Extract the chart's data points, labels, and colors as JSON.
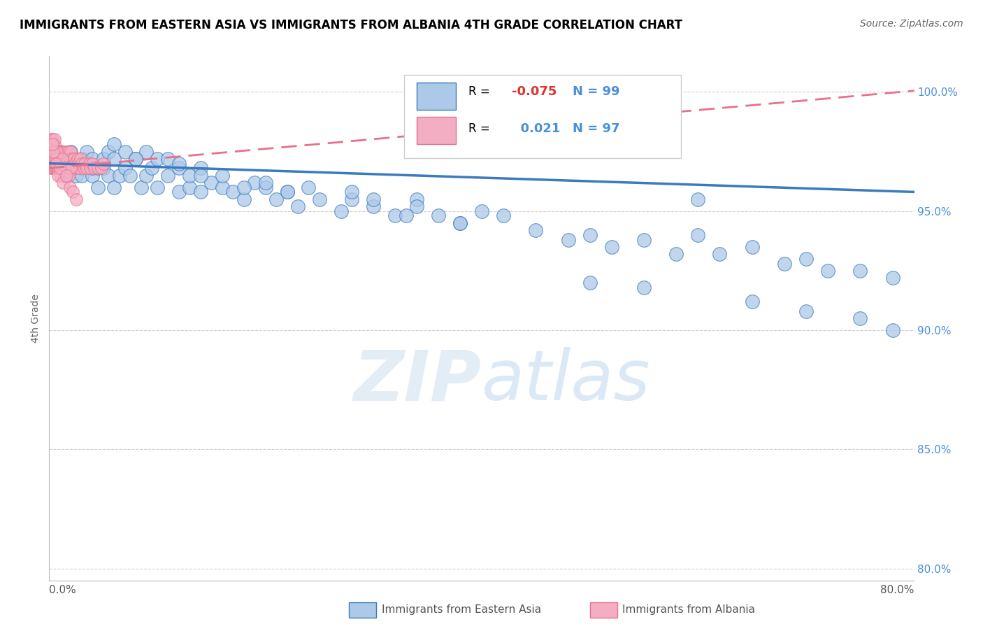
{
  "title": "IMMIGRANTS FROM EASTERN ASIA VS IMMIGRANTS FROM ALBANIA 4TH GRADE CORRELATION CHART",
  "source": "Source: ZipAtlas.com",
  "ylabel": "4th Grade",
  "legend_blue_r": "-0.075",
  "legend_blue_n": "99",
  "legend_pink_r": "0.021",
  "legend_pink_n": "97",
  "blue_color": "#adc9e8",
  "pink_color": "#f4aec4",
  "trend_blue_color": "#3a7bbf",
  "trend_pink_color": "#e8708a",
  "watermark": "ZIPatlas",
  "xmin": 0.0,
  "xmax": 0.8,
  "ymin": 0.795,
  "ymax": 1.015,
  "yticks": [
    0.8,
    0.85,
    0.9,
    0.95,
    1.0
  ],
  "ytick_labels": [
    "80.0%",
    "85.0%",
    "90.0%",
    "95.0%",
    "100.0%"
  ],
  "blue_trend_x0": 0.0,
  "blue_trend_x1": 0.8,
  "blue_trend_y0": 0.97,
  "blue_trend_y1": 0.958,
  "pink_trend_x0": 0.0,
  "pink_trend_x1": 0.8,
  "pink_trend_y0": 0.968,
  "pink_trend_y1": 1.0005,
  "blue_x": [
    0.005,
    0.01,
    0.01,
    0.015,
    0.015,
    0.02,
    0.02,
    0.02,
    0.025,
    0.025,
    0.03,
    0.03,
    0.03,
    0.035,
    0.035,
    0.04,
    0.04,
    0.04,
    0.045,
    0.045,
    0.05,
    0.05,
    0.055,
    0.055,
    0.06,
    0.06,
    0.065,
    0.07,
    0.07,
    0.075,
    0.08,
    0.085,
    0.09,
    0.09,
    0.095,
    0.1,
    0.1,
    0.11,
    0.11,
    0.12,
    0.12,
    0.13,
    0.13,
    0.14,
    0.14,
    0.15,
    0.16,
    0.17,
    0.18,
    0.19,
    0.2,
    0.21,
    0.22,
    0.23,
    0.24,
    0.25,
    0.27,
    0.28,
    0.3,
    0.32,
    0.34,
    0.36,
    0.38,
    0.4,
    0.42,
    0.45,
    0.48,
    0.5,
    0.52,
    0.55,
    0.58,
    0.6,
    0.62,
    0.65,
    0.68,
    0.7,
    0.72,
    0.75,
    0.78,
    0.34,
    0.38,
    0.28,
    0.3,
    0.33,
    0.2,
    0.22,
    0.16,
    0.18,
    0.12,
    0.14,
    0.08,
    0.06,
    0.5,
    0.55,
    0.65,
    0.7,
    0.75,
    0.78,
    0.6
  ],
  "blue_y": [
    0.972,
    0.968,
    0.975,
    0.965,
    0.97,
    0.975,
    0.968,
    0.972,
    0.965,
    0.97,
    0.968,
    0.972,
    0.965,
    0.97,
    0.975,
    0.965,
    0.968,
    0.972,
    0.96,
    0.968,
    0.968,
    0.972,
    0.965,
    0.975,
    0.96,
    0.972,
    0.965,
    0.968,
    0.975,
    0.965,
    0.972,
    0.96,
    0.965,
    0.975,
    0.968,
    0.96,
    0.972,
    0.965,
    0.972,
    0.958,
    0.968,
    0.96,
    0.965,
    0.958,
    0.968,
    0.962,
    0.96,
    0.958,
    0.955,
    0.962,
    0.96,
    0.955,
    0.958,
    0.952,
    0.96,
    0.955,
    0.95,
    0.955,
    0.952,
    0.948,
    0.955,
    0.948,
    0.945,
    0.95,
    0.948,
    0.942,
    0.938,
    0.94,
    0.935,
    0.938,
    0.932,
    0.94,
    0.932,
    0.935,
    0.928,
    0.93,
    0.925,
    0.925,
    0.922,
    0.952,
    0.945,
    0.958,
    0.955,
    0.948,
    0.962,
    0.958,
    0.965,
    0.96,
    0.97,
    0.965,
    0.972,
    0.978,
    0.92,
    0.918,
    0.912,
    0.908,
    0.905,
    0.9,
    0.955
  ],
  "pink_x": [
    0.001,
    0.001,
    0.001,
    0.002,
    0.002,
    0.002,
    0.002,
    0.003,
    0.003,
    0.003,
    0.003,
    0.004,
    0.004,
    0.004,
    0.004,
    0.005,
    0.005,
    0.005,
    0.005,
    0.006,
    0.006,
    0.006,
    0.007,
    0.007,
    0.007,
    0.008,
    0.008,
    0.008,
    0.009,
    0.009,
    0.009,
    0.01,
    0.01,
    0.01,
    0.011,
    0.011,
    0.012,
    0.012,
    0.013,
    0.013,
    0.014,
    0.014,
    0.015,
    0.015,
    0.016,
    0.016,
    0.017,
    0.017,
    0.018,
    0.018,
    0.019,
    0.019,
    0.02,
    0.02,
    0.021,
    0.021,
    0.022,
    0.022,
    0.023,
    0.023,
    0.024,
    0.025,
    0.026,
    0.027,
    0.028,
    0.029,
    0.03,
    0.032,
    0.033,
    0.035,
    0.037,
    0.038,
    0.04,
    0.042,
    0.045,
    0.048,
    0.05,
    0.007,
    0.006,
    0.008,
    0.009,
    0.01,
    0.012,
    0.015,
    0.018,
    0.02,
    0.005,
    0.004,
    0.003,
    0.006,
    0.008,
    0.01,
    0.013,
    0.016,
    0.019,
    0.022,
    0.025
  ],
  "pink_y": [
    0.98,
    0.975,
    0.97,
    0.978,
    0.972,
    0.968,
    0.975,
    0.972,
    0.968,
    0.975,
    0.98,
    0.968,
    0.975,
    0.972,
    0.978,
    0.975,
    0.968,
    0.972,
    0.978,
    0.97,
    0.975,
    0.968,
    0.972,
    0.968,
    0.975,
    0.97,
    0.975,
    0.968,
    0.972,
    0.968,
    0.975,
    0.97,
    0.975,
    0.968,
    0.972,
    0.968,
    0.975,
    0.97,
    0.972,
    0.968,
    0.97,
    0.975,
    0.968,
    0.972,
    0.97,
    0.975,
    0.968,
    0.972,
    0.97,
    0.975,
    0.968,
    0.972,
    0.97,
    0.975,
    0.968,
    0.972,
    0.97,
    0.968,
    0.972,
    0.968,
    0.97,
    0.968,
    0.972,
    0.97,
    0.968,
    0.972,
    0.97,
    0.968,
    0.97,
    0.968,
    0.97,
    0.968,
    0.97,
    0.968,
    0.968,
    0.968,
    0.97,
    0.975,
    0.972,
    0.968,
    0.97,
    0.965,
    0.972,
    0.968,
    0.965,
    0.968,
    0.98,
    0.975,
    0.978,
    0.97,
    0.965,
    0.968,
    0.962,
    0.965,
    0.96,
    0.958,
    0.955
  ]
}
